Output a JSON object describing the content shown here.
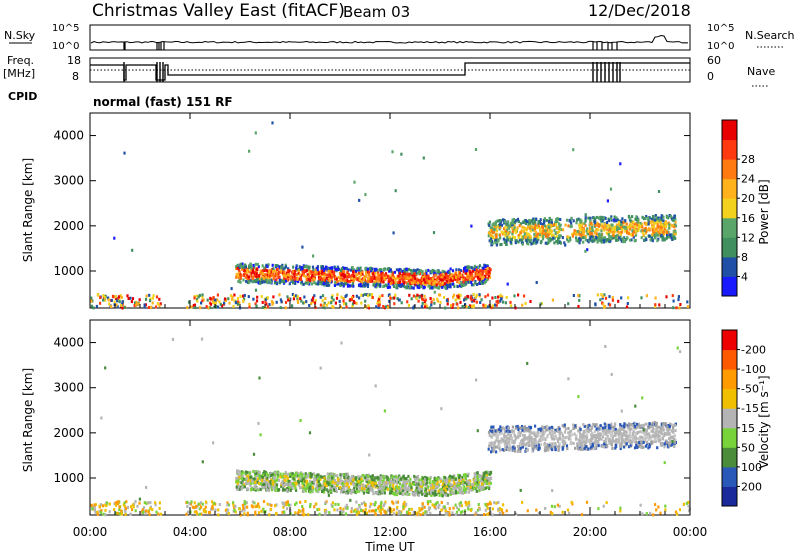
{
  "header": {
    "site": "Christmas Valley East (fitACF)",
    "beam": "Beam 03",
    "date": "12/Dec/2018"
  },
  "status": {
    "nsky_label": "N.Sky",
    "nsky_ticks": [
      "10^5",
      "10^0"
    ],
    "nsearch_label": "N.Search",
    "nsearch_ticks": [
      "10^5",
      "10^0"
    ],
    "freq_label_1": "Freq.",
    "freq_label_2": "[MHz]",
    "freq_ticks": [
      "18",
      "8"
    ],
    "nave_label": "Nave",
    "nave_ticks": [
      "60",
      "0"
    ],
    "cpid_label": "CPID",
    "cpid_text": "normal (fast) 151 RF"
  },
  "chart_data": [
    {
      "type": "heatmap",
      "title": "",
      "xlabel": "",
      "ylabel": "Slant Range [km]",
      "ylim": [
        180,
        4500
      ],
      "yticks": [
        "1000",
        "2000",
        "3000",
        "4000"
      ],
      "xticks": [
        "00:00",
        "04:00",
        "08:00",
        "12:00",
        "16:00",
        "20:00",
        "00:00"
      ],
      "colorbar": {
        "label": "Power [dB]",
        "colors": [
          "#1a1aff",
          "#1f4fa6",
          "#3f8f5f",
          "#5aa66a",
          "#f2d21c",
          "#ffb21c",
          "#ff7a10",
          "#ff3a10",
          "#e80000"
        ],
        "ticks": [
          "4",
          "8",
          "12",
          "16",
          "20",
          "24",
          "28"
        ]
      },
      "echo_regions": [
        {
          "start": "06:00",
          "end": "16:00",
          "range_km": [
            600,
            1200
          ],
          "level": "green-orange-red"
        },
        {
          "start": "16:00",
          "end": "23:30",
          "range_km": [
            1500,
            2300
          ],
          "level": "green-yellow"
        },
        {
          "start": "00:00",
          "end": "24:00",
          "range_km": [
            180,
            450
          ],
          "level": "ground scatter"
        }
      ]
    },
    {
      "type": "heatmap",
      "title": "",
      "xlabel": "Time UT",
      "ylabel": "Slant Range [km]",
      "ylim": [
        180,
        4500
      ],
      "yticks": [
        "1000",
        "2000",
        "3000",
        "4000"
      ],
      "xticks": [
        "00:00",
        "04:00",
        "08:00",
        "12:00",
        "16:00",
        "20:00",
        "00:00"
      ],
      "colorbar": {
        "label": "Velocity [m s⁻¹]",
        "colors": [
          "#1a2a9a",
          "#2a58b8",
          "#4a8c3a",
          "#78d23a",
          "#b4b4b4",
          "#f0c000",
          "#ff9a00",
          "#ff5a00",
          "#ee0000"
        ],
        "ticks": [
          "200",
          "100",
          "50",
          "15",
          "-15",
          "-50",
          "-100",
          "-200"
        ]
      },
      "echo_regions": [
        {
          "start": "06:00",
          "end": "16:00",
          "range_km": [
            600,
            1200
          ],
          "level": "green/grey"
        },
        {
          "start": "16:00",
          "end": "23:30",
          "range_km": [
            1500,
            2300
          ],
          "level": "grey"
        },
        {
          "start": "00:00",
          "end": "24:00",
          "range_km": [
            180,
            450
          ],
          "level": "orange/green"
        }
      ]
    }
  ]
}
